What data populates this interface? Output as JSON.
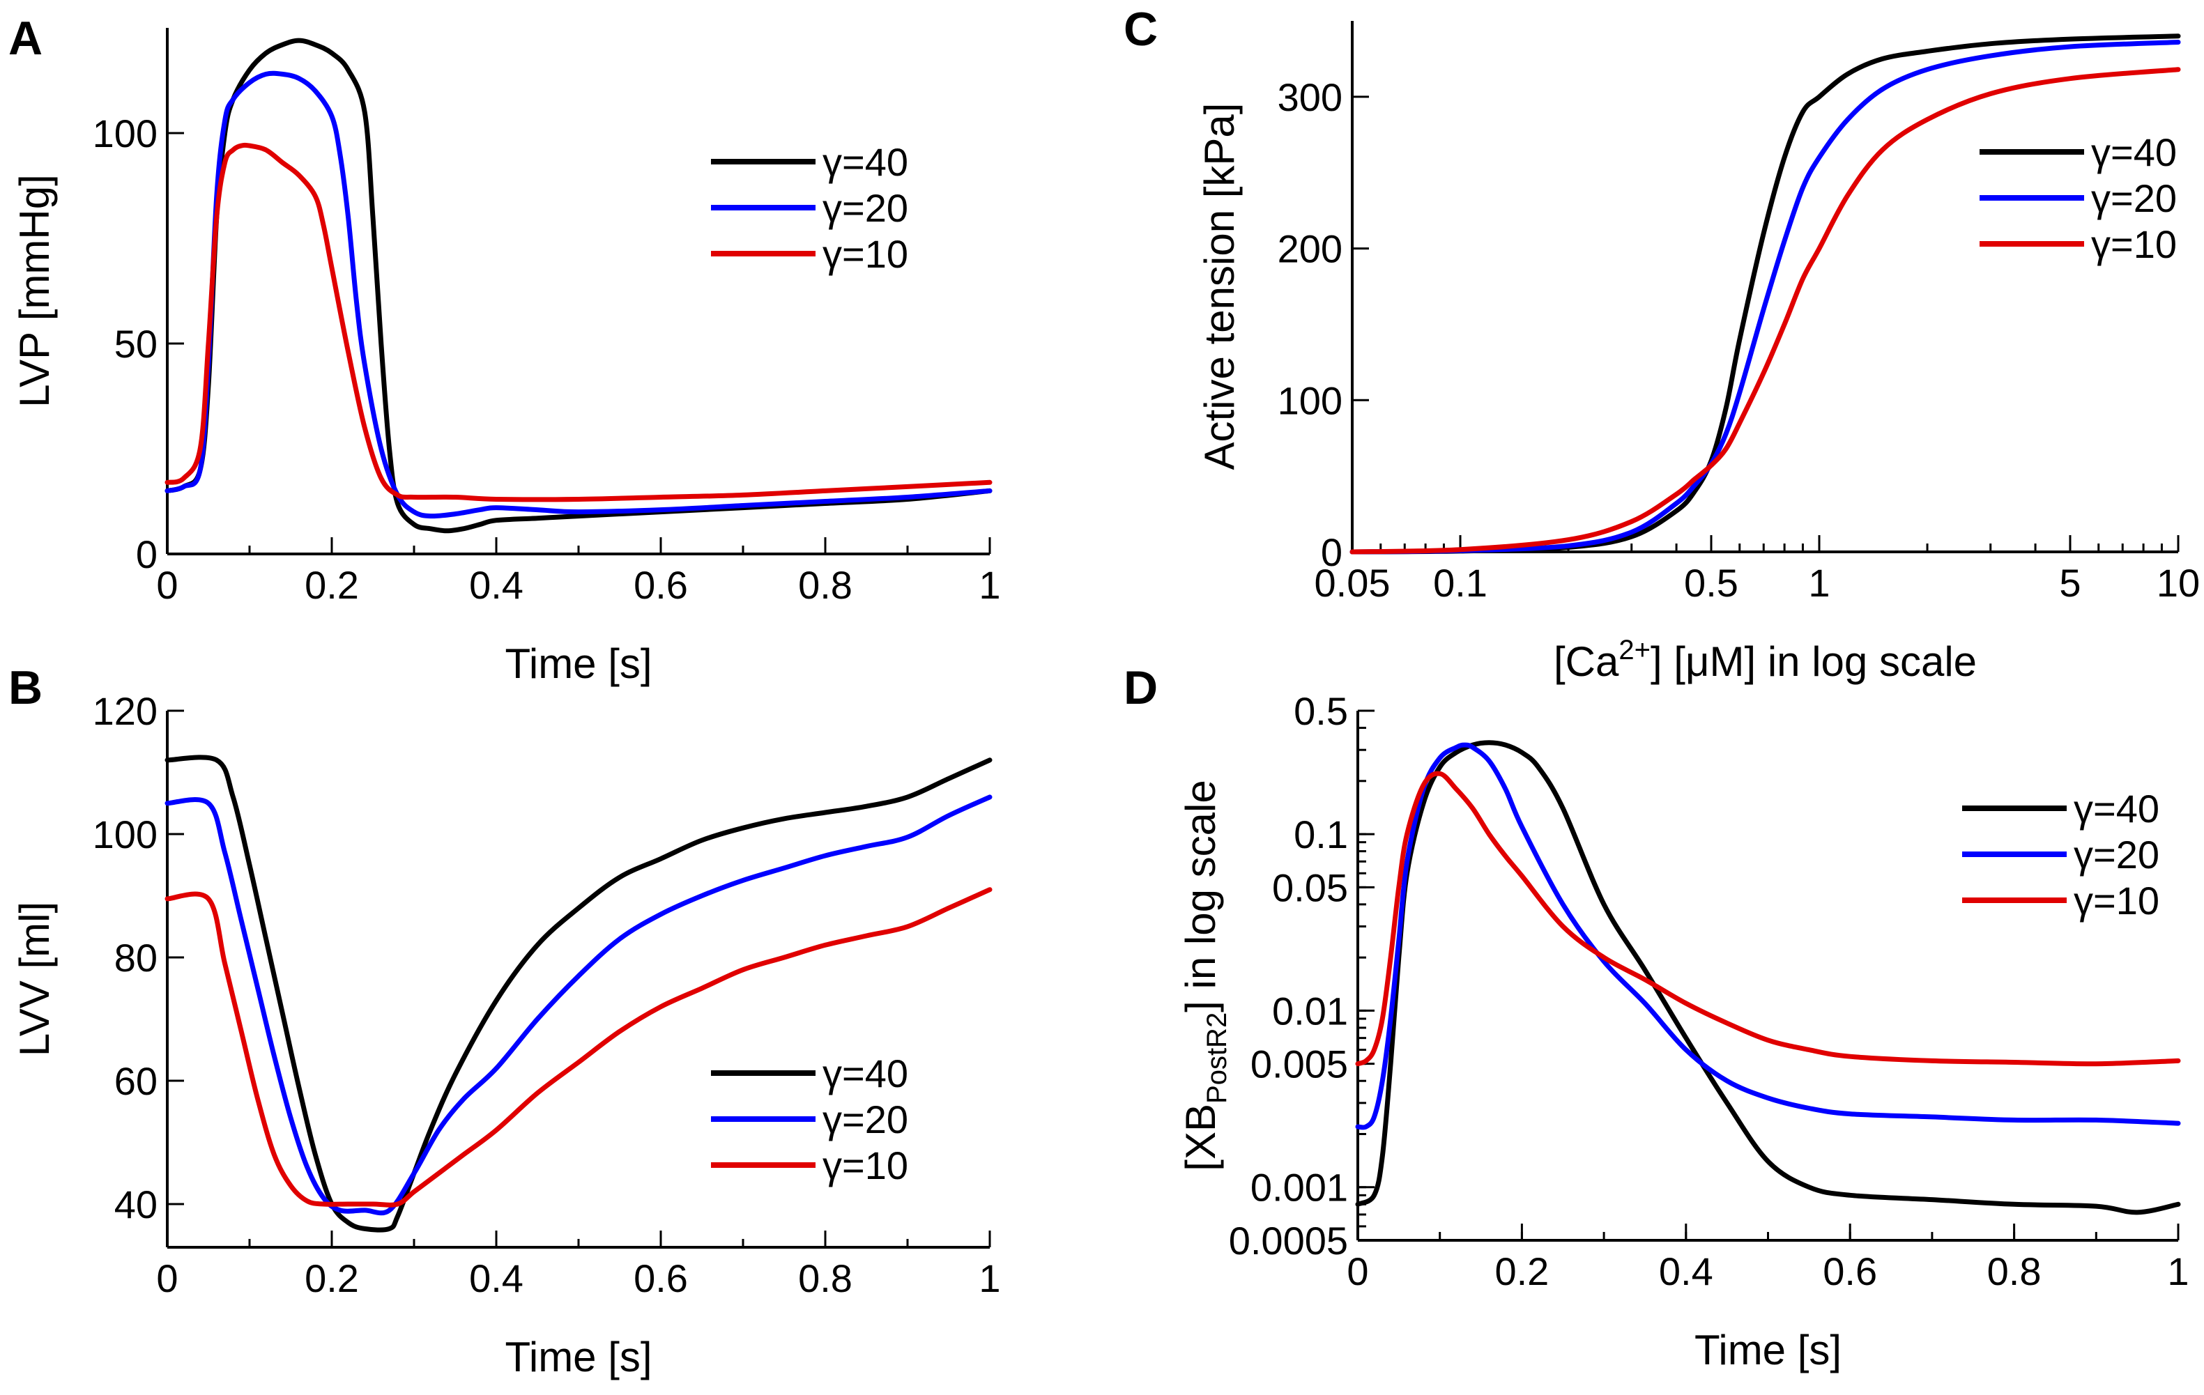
{
  "chart_data": [
    {
      "panel": "A",
      "type": "line",
      "xlabel": "Time  [s]",
      "ylabel": "LVP [mmHg]",
      "xlim": [
        0,
        1
      ],
      "ylim": [
        0,
        125
      ],
      "xticks": [
        0,
        0.2,
        0.4,
        0.6,
        0.8,
        1
      ],
      "xtick_labels": [
        "0",
        "0.2",
        "0.4",
        "0.6",
        "0.8",
        "1"
      ],
      "yticks": [
        0,
        50,
        100
      ],
      "ytick_labels": [
        "0",
        "50",
        "100"
      ],
      "legend_position": "upper-right",
      "series": [
        {
          "name": "γ=40",
          "color": "#000000",
          "x": [
            0,
            0.02,
            0.04,
            0.05,
            0.06,
            0.07,
            0.08,
            0.1,
            0.12,
            0.14,
            0.16,
            0.18,
            0.2,
            0.22,
            0.24,
            0.25,
            0.26,
            0.27,
            0.28,
            0.3,
            0.32,
            0.34,
            0.36,
            0.38,
            0.4,
            0.45,
            0.5,
            0.6,
            0.7,
            0.8,
            0.9,
            1.0
          ],
          "y": [
            15,
            16,
            20,
            40,
            80,
            100,
            108,
            115,
            119,
            121,
            122,
            121,
            119,
            115,
            105,
            80,
            50,
            25,
            12,
            7,
            6,
            5.5,
            6,
            7,
            8,
            8.5,
            9,
            10,
            11,
            12,
            13,
            15
          ]
        },
        {
          "name": "γ=20",
          "color": "#0000ff",
          "x": [
            0,
            0.02,
            0.04,
            0.05,
            0.06,
            0.07,
            0.08,
            0.1,
            0.12,
            0.14,
            0.16,
            0.18,
            0.2,
            0.21,
            0.22,
            0.23,
            0.24,
            0.26,
            0.28,
            0.3,
            0.32,
            0.35,
            0.38,
            0.4,
            0.45,
            0.5,
            0.6,
            0.7,
            0.8,
            0.9,
            1.0
          ],
          "y": [
            15,
            16,
            20,
            45,
            85,
            103,
            108,
            112,
            114,
            114,
            113,
            110,
            104,
            95,
            80,
            60,
            45,
            25,
            14,
            10,
            9,
            9.5,
            10.5,
            11,
            10.5,
            10,
            10.5,
            11.5,
            12.5,
            13.5,
            15
          ]
        },
        {
          "name": "γ=10",
          "color": "#e00000",
          "x": [
            0,
            0.02,
            0.04,
            0.05,
            0.06,
            0.07,
            0.08,
            0.09,
            0.1,
            0.12,
            0.14,
            0.16,
            0.18,
            0.19,
            0.2,
            0.22,
            0.24,
            0.26,
            0.28,
            0.3,
            0.35,
            0.4,
            0.5,
            0.6,
            0.7,
            0.8,
            0.9,
            1.0
          ],
          "y": [
            17,
            18,
            25,
            50,
            80,
            93,
            96,
            97,
            97,
            96,
            93,
            90,
            85,
            78,
            68,
            48,
            30,
            18,
            14,
            13.5,
            13.5,
            13,
            13,
            13.5,
            14,
            15,
            16,
            17
          ]
        }
      ]
    },
    {
      "panel": "B",
      "type": "line",
      "xlabel": "Time  [s]",
      "ylabel": "LVV [ml]",
      "xlim": [
        0,
        1
      ],
      "ylim": [
        33,
        120
      ],
      "xticks": [
        0,
        0.2,
        0.4,
        0.6,
        0.8,
        1
      ],
      "xtick_labels": [
        "0",
        "0.2",
        "0.4",
        "0.6",
        "0.8",
        "1"
      ],
      "yticks": [
        40,
        60,
        80,
        100,
        120
      ],
      "ytick_labels": [
        "40",
        "60",
        "80",
        "100",
        "120"
      ],
      "legend_position": "lower-right",
      "series": [
        {
          "name": "γ=40",
          "color": "#000000",
          "x": [
            0,
            0.06,
            0.08,
            0.1,
            0.12,
            0.14,
            0.16,
            0.18,
            0.2,
            0.22,
            0.24,
            0.27,
            0.28,
            0.3,
            0.32,
            0.35,
            0.4,
            0.45,
            0.5,
            0.55,
            0.6,
            0.65,
            0.7,
            0.75,
            0.8,
            0.85,
            0.9,
            0.95,
            1.0
          ],
          "y": [
            112,
            112,
            106,
            95,
            83,
            71,
            59,
            48,
            40,
            37,
            36,
            36,
            38,
            45,
            52,
            61,
            73,
            82,
            88,
            93,
            96,
            99,
            101,
            102.5,
            103.5,
            104.5,
            106,
            109,
            112
          ]
        },
        {
          "name": "γ=20",
          "color": "#0000ff",
          "x": [
            0,
            0.05,
            0.07,
            0.09,
            0.11,
            0.13,
            0.15,
            0.17,
            0.19,
            0.21,
            0.24,
            0.27,
            0.3,
            0.33,
            0.36,
            0.4,
            0.45,
            0.5,
            0.55,
            0.6,
            0.65,
            0.7,
            0.75,
            0.8,
            0.85,
            0.9,
            0.95,
            1.0
          ],
          "y": [
            105,
            105,
            97,
            86,
            75,
            64,
            54,
            46,
            41,
            39,
            39,
            39,
            45,
            52,
            57,
            62,
            70,
            77,
            83,
            87,
            90,
            92.5,
            94.5,
            96.5,
            98,
            99.5,
            103,
            106
          ]
        },
        {
          "name": "γ=10",
          "color": "#e00000",
          "x": [
            0,
            0.05,
            0.07,
            0.09,
            0.11,
            0.13,
            0.15,
            0.17,
            0.19,
            0.22,
            0.25,
            0.28,
            0.3,
            0.33,
            0.36,
            0.4,
            0.45,
            0.5,
            0.55,
            0.6,
            0.65,
            0.7,
            0.75,
            0.8,
            0.85,
            0.9,
            0.95,
            1.0
          ],
          "y": [
            89.5,
            89.5,
            79,
            68,
            57,
            48,
            43,
            40.5,
            40,
            40,
            40,
            40,
            42,
            45,
            48,
            52,
            58,
            63,
            68,
            72,
            75,
            78,
            80,
            82,
            83.5,
            85,
            88,
            91
          ]
        }
      ]
    },
    {
      "panel": "C",
      "type": "line",
      "xscale": "log",
      "xlabel": "[Ca2+] [μM] in log scale",
      "xlabel_parts": [
        "[Ca",
        "2+",
        "] [μM]  in log scale"
      ],
      "ylabel": "Active tension [kPa]",
      "xlim": [
        0.05,
        10
      ],
      "ylim": [
        0,
        350
      ],
      "xticks": [
        0.05,
        0.1,
        0.5,
        1,
        5,
        10
      ],
      "xtick_labels": [
        "0.05",
        "0.1",
        "0.5",
        "1",
        "5",
        "10"
      ],
      "yticks": [
        0,
        100,
        200,
        300
      ],
      "ytick_labels": [
        "0",
        "100",
        "200",
        "300"
      ],
      "legend_position": "upper-right",
      "series": [
        {
          "name": "γ=40",
          "color": "#000000",
          "x": [
            0.05,
            0.1,
            0.2,
            0.3,
            0.4,
            0.45,
            0.5,
            0.55,
            0.6,
            0.7,
            0.8,
            0.9,
            1,
            1.2,
            1.5,
            2,
            3,
            5,
            10
          ],
          "y": [
            0,
            0.5,
            3,
            10,
            27,
            40,
            60,
            95,
            140,
            210,
            260,
            290,
            300,
            315,
            325,
            330,
            335,
            338,
            340
          ]
        },
        {
          "name": "γ=20",
          "color": "#0000ff",
          "x": [
            0.05,
            0.1,
            0.2,
            0.3,
            0.4,
            0.45,
            0.5,
            0.55,
            0.6,
            0.7,
            0.8,
            0.9,
            1,
            1.2,
            1.5,
            2,
            3,
            5,
            10
          ],
          "y": [
            0,
            0.8,
            4,
            13,
            32,
            44,
            58,
            78,
            105,
            160,
            205,
            240,
            260,
            285,
            305,
            318,
            327,
            333,
            336
          ]
        },
        {
          "name": "γ=10",
          "color": "#e00000",
          "x": [
            0.05,
            0.1,
            0.2,
            0.3,
            0.4,
            0.45,
            0.5,
            0.55,
            0.6,
            0.7,
            0.8,
            0.9,
            1,
            1.2,
            1.5,
            2,
            3,
            5,
            10
          ],
          "y": [
            0,
            1.5,
            8,
            20,
            38,
            48,
            57,
            68,
            85,
            118,
            150,
            180,
            200,
            235,
            265,
            285,
            302,
            312,
            318
          ]
        }
      ]
    },
    {
      "panel": "D",
      "type": "line",
      "yscale": "log",
      "xlabel": "Time  [s]",
      "ylabel": "[XBPostR2] in log scale",
      "ylabel_parts": [
        "[XB",
        "PostR2",
        "] in log scale"
      ],
      "xlim": [
        0,
        1
      ],
      "ylim": [
        0.0005,
        0.5
      ],
      "xticks": [
        0,
        0.2,
        0.4,
        0.6,
        0.8,
        1
      ],
      "xtick_labels": [
        "0",
        "0.2",
        "0.4",
        "0.6",
        "0.8",
        "1"
      ],
      "yticks": [
        0.0005,
        0.001,
        0.005,
        0.01,
        0.05,
        0.1,
        0.5
      ],
      "ytick_labels": [
        "0.0005",
        "0.001",
        "0.005",
        "0.01",
        "0.05",
        "0.1",
        "0.5"
      ],
      "legend_position": "upper-right",
      "series": [
        {
          "name": "γ=40",
          "color": "#000000",
          "x": [
            0,
            0.02,
            0.03,
            0.04,
            0.05,
            0.06,
            0.08,
            0.1,
            0.12,
            0.14,
            0.16,
            0.18,
            0.2,
            0.22,
            0.25,
            0.3,
            0.35,
            0.4,
            0.45,
            0.5,
            0.55,
            0.6,
            0.7,
            0.8,
            0.9,
            0.95,
            1.0
          ],
          "y": [
            0.0008,
            0.0009,
            0.0015,
            0.005,
            0.02,
            0.06,
            0.15,
            0.24,
            0.29,
            0.32,
            0.33,
            0.32,
            0.29,
            0.24,
            0.14,
            0.04,
            0.017,
            0.007,
            0.003,
            0.0014,
            0.001,
            0.0009,
            0.00085,
            0.0008,
            0.00078,
            0.00072,
            0.0008
          ]
        },
        {
          "name": "γ=20",
          "color": "#0000ff",
          "x": [
            0,
            0.01,
            0.02,
            0.03,
            0.04,
            0.05,
            0.06,
            0.08,
            0.1,
            0.12,
            0.13,
            0.14,
            0.16,
            0.18,
            0.2,
            0.25,
            0.3,
            0.35,
            0.4,
            0.45,
            0.5,
            0.55,
            0.6,
            0.7,
            0.8,
            0.9,
            1.0
          ],
          "y": [
            0.0022,
            0.0022,
            0.0025,
            0.004,
            0.009,
            0.025,
            0.07,
            0.18,
            0.27,
            0.31,
            0.32,
            0.31,
            0.26,
            0.18,
            0.11,
            0.04,
            0.019,
            0.011,
            0.006,
            0.004,
            0.0032,
            0.0028,
            0.0026,
            0.0025,
            0.0024,
            0.0024,
            0.0023
          ]
        },
        {
          "name": "γ=10",
          "color": "#e00000",
          "x": [
            0,
            0.01,
            0.02,
            0.03,
            0.04,
            0.05,
            0.06,
            0.08,
            0.1,
            0.12,
            0.14,
            0.16,
            0.18,
            0.2,
            0.25,
            0.3,
            0.35,
            0.4,
            0.45,
            0.5,
            0.55,
            0.6,
            0.7,
            0.8,
            0.9,
            1.0
          ],
          "y": [
            0.005,
            0.0052,
            0.006,
            0.009,
            0.02,
            0.05,
            0.1,
            0.19,
            0.22,
            0.18,
            0.14,
            0.1,
            0.075,
            0.058,
            0.03,
            0.02,
            0.015,
            0.011,
            0.0085,
            0.0068,
            0.006,
            0.0055,
            0.0052,
            0.0051,
            0.005,
            0.0052
          ]
        }
      ]
    }
  ]
}
